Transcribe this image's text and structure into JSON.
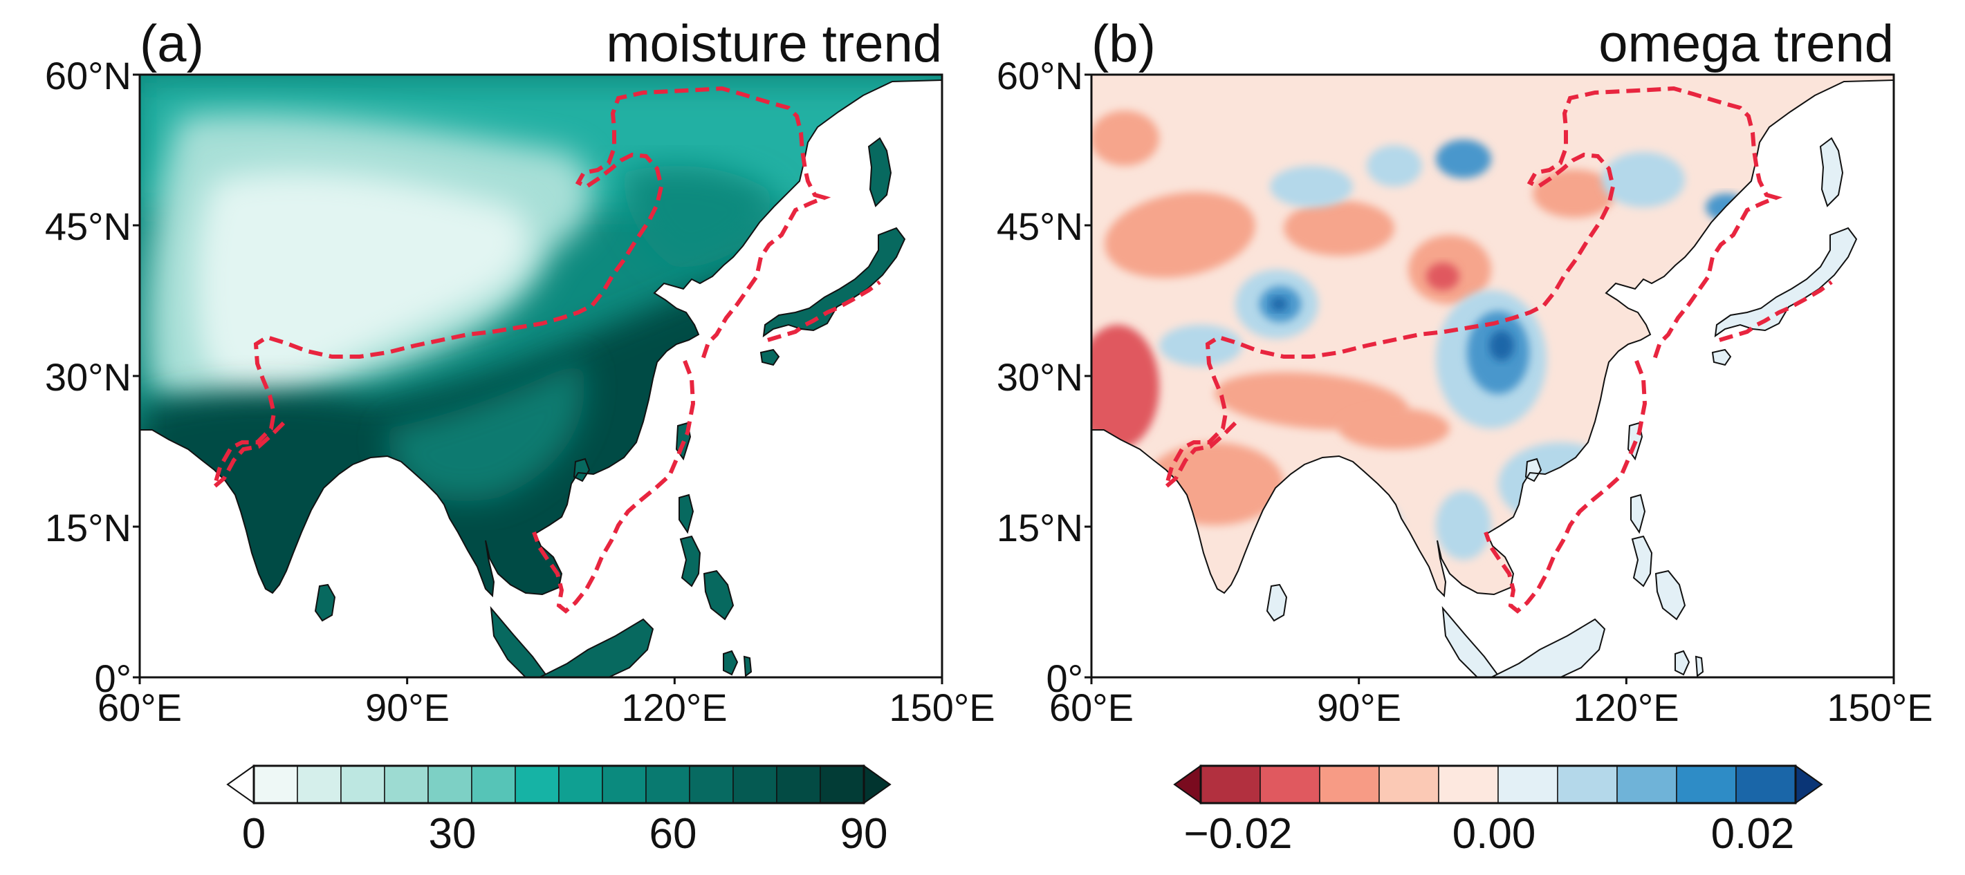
{
  "panels": [
    {
      "id": "a",
      "label": "(a)",
      "title": "moisture trend",
      "y_ticks": [
        "60°N",
        "45°N",
        "30°N",
        "15°N",
        "0°"
      ],
      "x_ticks": [
        "60°E",
        "90°E",
        "120°E",
        "150°E"
      ],
      "colorbar": {
        "ticks": [
          "0",
          "30",
          "60",
          "90"
        ],
        "levels": [
          "#eef8f6",
          "#d5efeb",
          "#bde7e1",
          "#9ddbd2",
          "#7dd0c5",
          "#56c4b7",
          "#16b3a5",
          "#0fa092",
          "#0b8a7e",
          "#097a70",
          "#076a61",
          "#055a52",
          "#034b44",
          "#023c36"
        ],
        "min_color": "#ffffff",
        "max_color": "#01342f"
      },
      "palette": {
        "land_fill": "#0d8a7e",
        "arid_core": "#e2f5f2",
        "arid_mid": "#a7dfd7",
        "north_mid": "#22b0a3",
        "monsoon_dark": "#034b44",
        "island_fill": "#07695f"
      }
    },
    {
      "id": "b",
      "label": "(b)",
      "title": "omega trend",
      "y_ticks": [
        "60°N",
        "45°N",
        "30°N",
        "15°N",
        "0°"
      ],
      "x_ticks": [
        "60°E",
        "90°E",
        "120°E",
        "150°E"
      ],
      "colorbar": {
        "ticks": [
          "−0.02",
          "0.00",
          "0.02"
        ],
        "levels": [
          "#b2303f",
          "#e0595f",
          "#f79b85",
          "#fbc9b5",
          "#fde8df",
          "#e3f0f6",
          "#b4d8ea",
          "#6fb3d8",
          "#2e8cc6",
          "#1a66a8"
        ],
        "min_color": "#7a0b1f",
        "max_color": "#0a3576"
      },
      "palette": {
        "land_fill": "#fbe4da",
        "red_patch": "#f6a58c",
        "red_strong": "#e0595f",
        "blue_patch": "#b4d8ea",
        "blue_strong": "#4a97cc",
        "blue_core": "#1a66a8",
        "island_fill": "#e3f0f6"
      }
    }
  ],
  "boundary_color": "#e8253f"
}
